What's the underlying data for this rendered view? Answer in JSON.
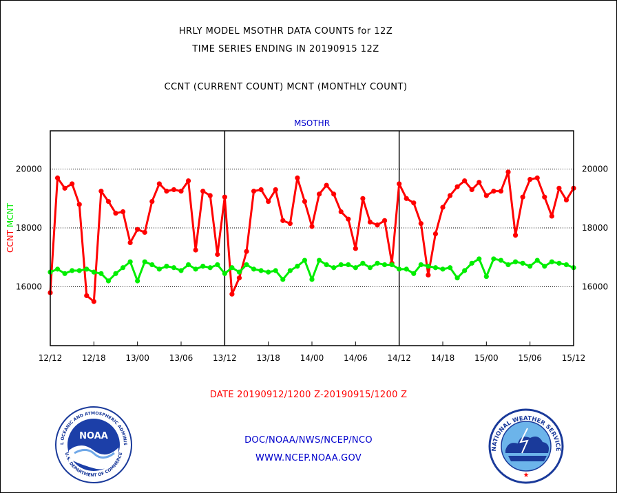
{
  "header": {
    "line1": "HRLY MODEL MSOTHR DATA COUNTS for 12Z",
    "line2": "TIME SERIES ENDING IN 20190915 12Z",
    "line3": "CCNT (CURRENT COUNT) MCNT (MONTHLY COUNT)"
  },
  "footer": {
    "date_range": "DATE 20190912/1200 Z-20190915/1200 Z",
    "org": "DOC/NOAA/NWS/NCEP/NCO",
    "url": "WWW.NCEP.NOAA.GOV"
  },
  "logos": {
    "noaa_text": "NOAA",
    "noaa_ring_top": "NATIONAL OCEANIC AND ATMOSPHERIC ADMINISTRATION",
    "noaa_ring_bottom": "U.S. DEPARTMENT OF COMMERCE",
    "nws_ring": "NATIONAL WEATHER SERVICE"
  },
  "colors": {
    "ccnt": "#ff0000",
    "mcnt": "#00ee00",
    "title_blue": "#0000cc",
    "footer_red": "#ff0000",
    "footer_blue": "#0000cc"
  },
  "chart_data": {
    "type": "line",
    "title": "MSOTHR",
    "ylabel_parts": [
      {
        "text": "CCNT",
        "color": "#ff0000"
      },
      {
        "text": "MCNT",
        "color": "#00ee00"
      }
    ],
    "ylim": [
      14000,
      21300
    ],
    "yticks": [
      16000,
      18000,
      20000
    ],
    "grid": true,
    "x_tick_labels": [
      "12/12",
      "12/18",
      "13/00",
      "13/06",
      "13/12",
      "13/18",
      "14/00",
      "14/06",
      "14/12",
      "14/18",
      "15/00",
      "15/06",
      "15/12"
    ],
    "x_tick_hours": [
      0,
      6,
      12,
      18,
      24,
      30,
      36,
      42,
      48,
      54,
      60,
      66,
      72
    ],
    "day_boundaries_hours": [
      24,
      48
    ],
    "series": [
      {
        "name": "CCNT",
        "color": "#ff0000",
        "x_hours": [
          0,
          1,
          2,
          3,
          4,
          5,
          6,
          7,
          8,
          9,
          10,
          11,
          12,
          13,
          14,
          15,
          16,
          17,
          18,
          19,
          20,
          21,
          22,
          23,
          24,
          25,
          26,
          27,
          28,
          29,
          30,
          31,
          32,
          33,
          34,
          35,
          36,
          37,
          38,
          39,
          40,
          41,
          42,
          43,
          44,
          45,
          46,
          47,
          48,
          49,
          50,
          51,
          52,
          53,
          54,
          55,
          56,
          57,
          58,
          59,
          60,
          61,
          62,
          63,
          64,
          65,
          66,
          67,
          68,
          69,
          70,
          71,
          72
        ],
        "values": [
          15800,
          19700,
          19350,
          19500,
          18800,
          15700,
          15500,
          19250,
          18900,
          18500,
          18550,
          17500,
          17950,
          17850,
          18900,
          19500,
          19250,
          19300,
          19250,
          19600,
          17250,
          19250,
          19100,
          17100,
          19050,
          15750,
          16300,
          17200,
          19250,
          19300,
          18900,
          19300,
          18250,
          18150,
          19700,
          18900,
          18050,
          19150,
          19450,
          19150,
          18550,
          18300,
          17300,
          19000,
          18200,
          18100,
          18250,
          16800,
          19500,
          19000,
          18850,
          18150,
          16400,
          17800,
          18700,
          19100,
          19400,
          19600,
          19300,
          19550,
          19100,
          19250,
          19250,
          19900,
          17750,
          19050,
          19650,
          19700,
          19050,
          18400,
          19350,
          18950,
          19350
        ]
      },
      {
        "name": "MCNT",
        "color": "#00ee00",
        "x_hours": [
          0,
          1,
          2,
          3,
          4,
          5,
          6,
          7,
          8,
          9,
          10,
          11,
          12,
          13,
          14,
          15,
          16,
          17,
          18,
          19,
          20,
          21,
          22,
          23,
          24,
          25,
          26,
          27,
          28,
          29,
          30,
          31,
          32,
          33,
          34,
          35,
          36,
          37,
          38,
          39,
          40,
          41,
          42,
          43,
          44,
          45,
          46,
          47,
          48,
          49,
          50,
          51,
          52,
          53,
          54,
          55,
          56,
          57,
          58,
          59,
          60,
          61,
          62,
          63,
          64,
          65,
          66,
          67,
          68,
          69,
          70,
          71,
          72
        ],
        "values": [
          16500,
          16600,
          16450,
          16550,
          16550,
          16600,
          16500,
          16450,
          16200,
          16450,
          16650,
          16850,
          16200,
          16850,
          16750,
          16600,
          16700,
          16650,
          16550,
          16750,
          16600,
          16700,
          16650,
          16750,
          16450,
          16650,
          16500,
          16750,
          16600,
          16550,
          16500,
          16550,
          16250,
          16550,
          16700,
          16900,
          16250,
          16900,
          16750,
          16650,
          16750,
          16750,
          16650,
          16800,
          16650,
          16800,
          16750,
          16750,
          16600,
          16600,
          16450,
          16750,
          16700,
          16650,
          16600,
          16650,
          16300,
          16550,
          16800,
          16950,
          16350,
          16950,
          16900,
          16750,
          16850,
          16800,
          16700,
          16900,
          16700,
          16850,
          16800,
          16750,
          16650
        ]
      }
    ]
  }
}
